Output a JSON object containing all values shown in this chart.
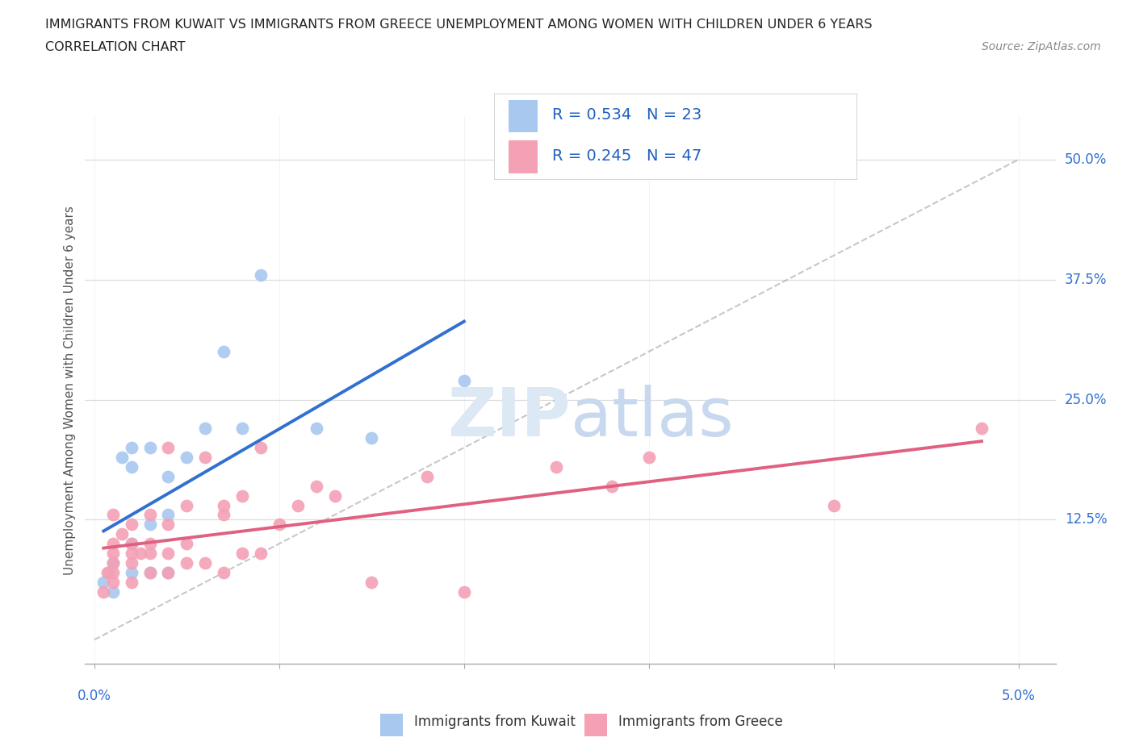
{
  "title_line1": "IMMIGRANTS FROM KUWAIT VS IMMIGRANTS FROM GREECE UNEMPLOYMENT AMONG WOMEN WITH CHILDREN UNDER 6 YEARS",
  "title_line2": "CORRELATION CHART",
  "source": "Source: ZipAtlas.com",
  "y_ticks_labels": [
    "12.5%",
    "25.0%",
    "37.5%",
    "50.0%"
  ],
  "y_tick_vals": [
    0.125,
    0.25,
    0.375,
    0.5
  ],
  "x_range": [
    -0.0005,
    0.052
  ],
  "y_range": [
    -0.025,
    0.545
  ],
  "kuwait_R": 0.534,
  "kuwait_N": 23,
  "greece_R": 0.245,
  "greece_N": 47,
  "kuwait_color": "#a8c8f0",
  "greece_color": "#f4a0b5",
  "kuwait_line_color": "#3070d0",
  "greece_line_color": "#e06080",
  "kuwait_x": [
    0.0005,
    0.0008,
    0.001,
    0.001,
    0.0015,
    0.002,
    0.002,
    0.002,
    0.002,
    0.003,
    0.003,
    0.003,
    0.004,
    0.004,
    0.004,
    0.005,
    0.006,
    0.007,
    0.008,
    0.009,
    0.012,
    0.015,
    0.02
  ],
  "kuwait_y": [
    0.06,
    0.07,
    0.05,
    0.08,
    0.19,
    0.07,
    0.1,
    0.18,
    0.2,
    0.07,
    0.12,
    0.2,
    0.07,
    0.13,
    0.17,
    0.19,
    0.22,
    0.3,
    0.22,
    0.38,
    0.22,
    0.21,
    0.27
  ],
  "greece_x": [
    0.0005,
    0.0007,
    0.001,
    0.001,
    0.001,
    0.001,
    0.001,
    0.001,
    0.0015,
    0.002,
    0.002,
    0.002,
    0.002,
    0.002,
    0.0025,
    0.003,
    0.003,
    0.003,
    0.003,
    0.004,
    0.004,
    0.004,
    0.004,
    0.005,
    0.005,
    0.005,
    0.006,
    0.006,
    0.007,
    0.007,
    0.007,
    0.008,
    0.008,
    0.009,
    0.009,
    0.01,
    0.011,
    0.012,
    0.013,
    0.015,
    0.018,
    0.02,
    0.025,
    0.028,
    0.03,
    0.04,
    0.048
  ],
  "greece_y": [
    0.05,
    0.07,
    0.06,
    0.07,
    0.08,
    0.09,
    0.1,
    0.13,
    0.11,
    0.06,
    0.08,
    0.09,
    0.1,
    0.12,
    0.09,
    0.07,
    0.09,
    0.1,
    0.13,
    0.07,
    0.09,
    0.12,
    0.2,
    0.08,
    0.1,
    0.14,
    0.08,
    0.19,
    0.07,
    0.13,
    0.14,
    0.09,
    0.15,
    0.09,
    0.2,
    0.12,
    0.14,
    0.16,
    0.15,
    0.06,
    0.17,
    0.05,
    0.18,
    0.16,
    0.19,
    0.14,
    0.22
  ]
}
